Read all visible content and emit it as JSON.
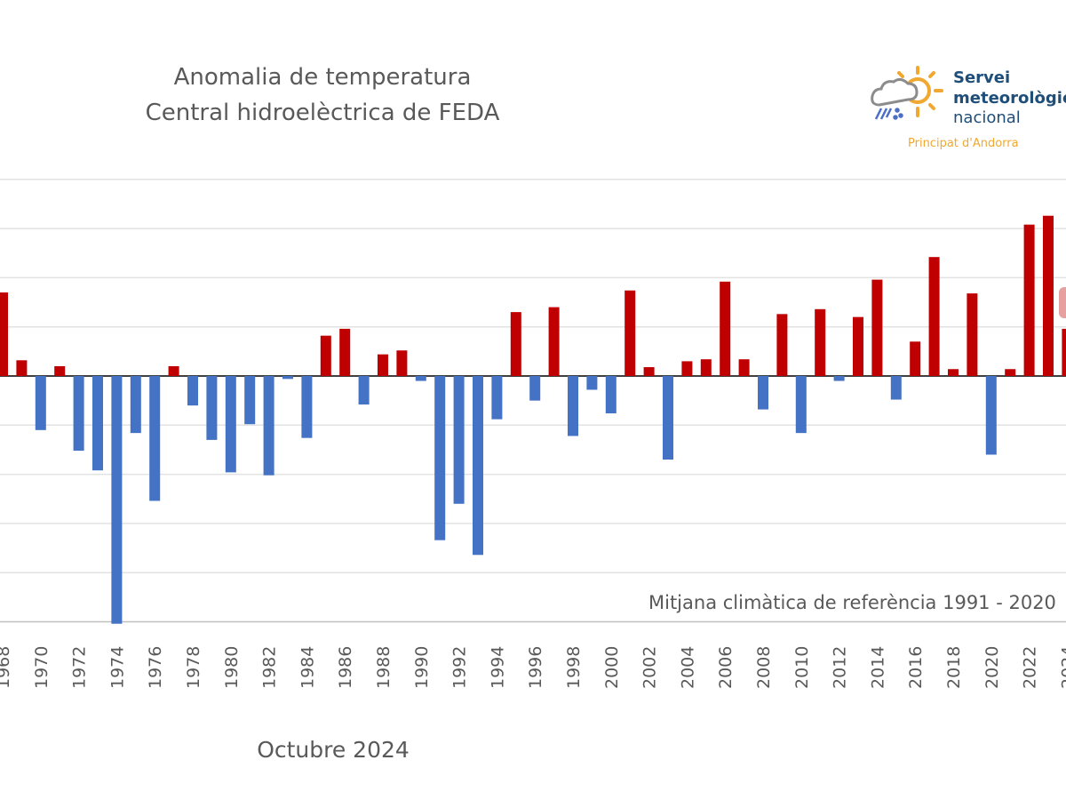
{
  "chart_data": {
    "type": "bar",
    "title": "Anomalia de temperatura",
    "subtitle": "Central hidroelèctrica de FEDA",
    "footer": "Octubre 2024",
    "annotation": "Mitjana climàtica de referència 1991 - 2020",
    "xlabel": "",
    "ylabel": "",
    "ylim": [
      -2.5,
      2.0
    ],
    "grid": true,
    "legend": "none",
    "x_tick_labels": [
      "1968",
      "1970",
      "1972",
      "1974",
      "1976",
      "1978",
      "1980",
      "1982",
      "1984",
      "1986",
      "1988",
      "1990",
      "1992",
      "1994",
      "1996",
      "1998",
      "2000",
      "2002",
      "2004",
      "2006",
      "2008",
      "2010",
      "2012",
      "2014",
      "2016",
      "2018",
      "2020",
      "2022",
      "2024"
    ],
    "categories": [
      1968,
      1969,
      1970,
      1971,
      1972,
      1973,
      1974,
      1975,
      1976,
      1977,
      1978,
      1979,
      1980,
      1981,
      1982,
      1983,
      1984,
      1985,
      1986,
      1987,
      1988,
      1989,
      1990,
      1991,
      1992,
      1993,
      1994,
      1995,
      1996,
      1997,
      1998,
      1999,
      2000,
      2001,
      2002,
      2003,
      2004,
      2005,
      2006,
      2007,
      2008,
      2009,
      2010,
      2011,
      2012,
      2013,
      2014,
      2015,
      2016,
      2017,
      2018,
      2019,
      2020,
      2021,
      2022,
      2023,
      2024
    ],
    "values": [
      0.85,
      0.16,
      -0.55,
      0.1,
      -0.76,
      -0.96,
      -2.52,
      -0.58,
      -1.27,
      0.1,
      -0.3,
      -0.65,
      -0.98,
      -0.49,
      -1.01,
      -0.03,
      -0.63,
      0.41,
      0.48,
      -0.29,
      0.22,
      0.26,
      -0.05,
      -1.67,
      -1.3,
      -1.82,
      -0.44,
      0.65,
      -0.25,
      0.7,
      -0.61,
      -0.14,
      -0.38,
      0.87,
      0.09,
      -0.85,
      0.15,
      0.17,
      0.96,
      0.17,
      -0.34,
      0.63,
      -0.58,
      0.68,
      -0.05,
      0.6,
      0.98,
      -0.24,
      0.35,
      1.21,
      0.07,
      0.84,
      -0.8,
      0.07,
      1.54,
      1.63,
      0.48
    ],
    "colors": {
      "positive": "#C00000",
      "negative": "#4472C4",
      "highlight_label_bg": "#E6A0A0"
    }
  },
  "logo": {
    "line1": "Servei",
    "line2": "meteorològic",
    "line3": "nacional",
    "line4": "Principat d'Andorra",
    "colors": {
      "text": "#1F4E79",
      "sun": "#F0A830",
      "cloud": "#8C8C8C",
      "rain": "#4A6FC4"
    }
  }
}
